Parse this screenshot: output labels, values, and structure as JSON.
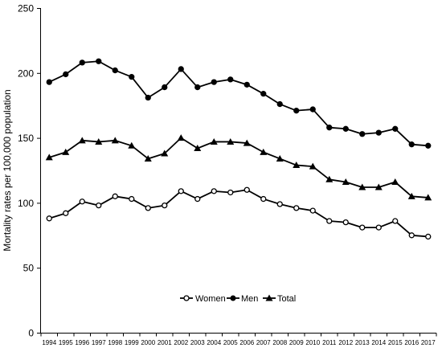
{
  "chart_data": {
    "type": "line",
    "categories": [
      "1994",
      "1995",
      "1996",
      "1997",
      "1998",
      "1999",
      "2000",
      "2001",
      "2002",
      "2003",
      "2004",
      "2005",
      "2006",
      "2007",
      "2008",
      "2009",
      "2010",
      "2011",
      "2012",
      "2013",
      "2014",
      "2015",
      "2016",
      "2017"
    ],
    "series": [
      {
        "name": "Women",
        "marker": "open-circle",
        "values": [
          88,
          92,
          101,
          98,
          105,
          103,
          96,
          98,
          109,
          103,
          109,
          108,
          110,
          103,
          99,
          96,
          94,
          86,
          85,
          81,
          81,
          86,
          75,
          74
        ]
      },
      {
        "name": "Men",
        "marker": "filled-circle",
        "values": [
          193,
          199,
          208,
          209,
          202,
          197,
          181,
          189,
          203,
          189,
          193,
          195,
          191,
          184,
          176,
          171,
          172,
          158,
          157,
          153,
          154,
          157,
          145,
          144
        ]
      },
      {
        "name": "Total",
        "marker": "filled-triangle",
        "values": [
          135,
          139,
          148,
          147,
          148,
          144,
          134,
          138,
          150,
          142,
          147,
          147,
          146,
          139,
          134,
          129,
          128,
          118,
          116,
          112,
          112,
          116,
          105,
          104
        ]
      }
    ],
    "ylabel": "Mortality rates per 100,000 population",
    "ylim": [
      0,
      250
    ],
    "yticks": [
      0,
      50,
      100,
      150,
      200,
      250
    ],
    "grid": false,
    "legend_position": "bottom-center",
    "colors": {
      "line": "#000000",
      "open_marker_fill": "#ffffff",
      "background": "#ffffff"
    }
  }
}
